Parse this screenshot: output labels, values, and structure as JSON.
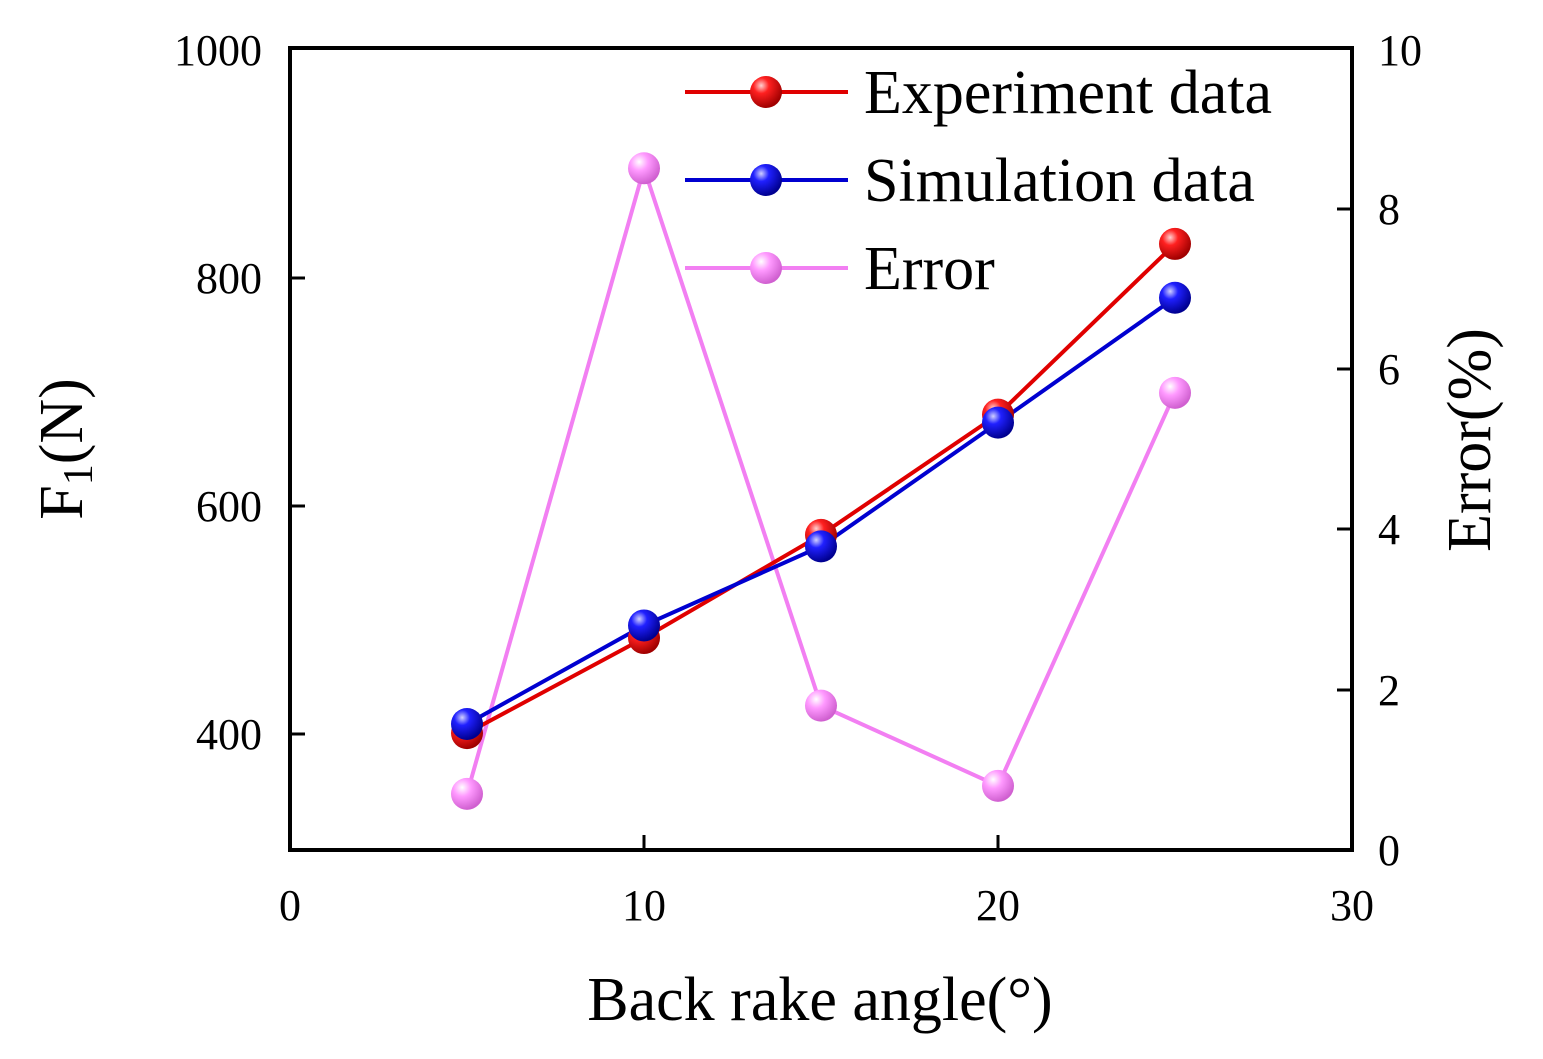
{
  "chart_data": {
    "type": "line",
    "x": [
      5,
      10,
      15,
      20,
      25
    ],
    "xlabel": "Back rake angle(°)",
    "ylabel_main": "F",
    "ylabel_sub": "1",
    "ylabel_unit": "(N)",
    "y2label": "Error(%)",
    "xlim": [
      0,
      30
    ],
    "ylim": [
      300,
      1000
    ],
    "y2lim": [
      0,
      10
    ],
    "xticks": [
      0,
      10,
      20,
      30
    ],
    "yticks": [
      400,
      600,
      800,
      1000
    ],
    "y2ticks": [
      0,
      2,
      4,
      6,
      8,
      10
    ],
    "grid": false,
    "legend_position": "top-right",
    "series": [
      {
        "name": "Experiment data",
        "axis": "left",
        "color": "#e00000",
        "values": [
          402,
          485,
          575,
          680,
          829
        ]
      },
      {
        "name": "Simulation data",
        "axis": "left",
        "color": "#0000d0",
        "values": [
          410,
          496,
          565,
          673,
          782
        ]
      },
      {
        "name": "Error",
        "axis": "right",
        "color": "#f27ff2",
        "values": [
          0.7,
          8.5,
          1.8,
          0.8,
          5.7
        ]
      }
    ]
  }
}
